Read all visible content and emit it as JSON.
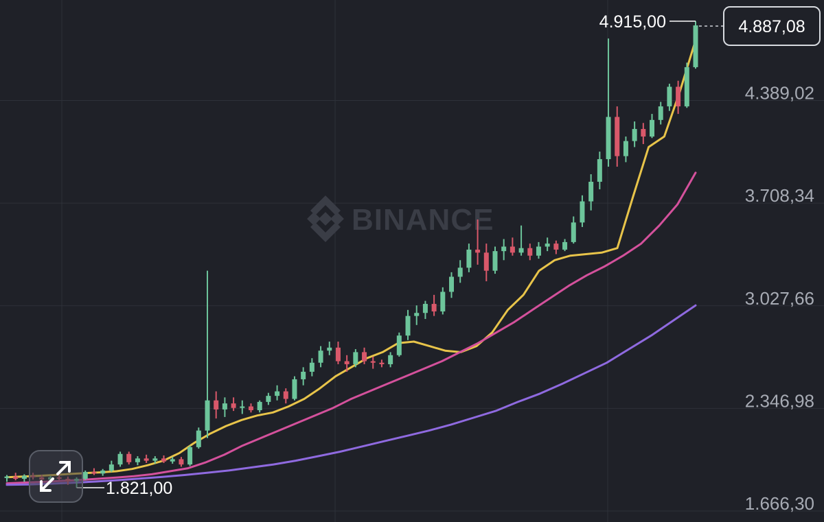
{
  "watermark": {
    "text": "BINANCE",
    "icon": "binance-logo-icon"
  },
  "colors": {
    "background": "#1f2128",
    "grid": "#2e3139",
    "up": "#6dc59b",
    "down": "#d9586a",
    "ma_short": "#e8c44a",
    "ma_mid": "#d4519c",
    "ma_long": "#8f6ae0",
    "axis_text": "#a7abb4"
  },
  "controls": {
    "expand_icon": "expand-arrows-icon"
  },
  "chart_data": {
    "type": "candlestick",
    "y_axis": {
      "position": "right",
      "ticks": [
        "4.389,02",
        "3.708,34",
        "3.027,66",
        "2.346,98",
        "1.666,30"
      ],
      "tick_values": [
        4389.02,
        3708.34,
        3027.66,
        2346.98,
        1666.3
      ],
      "range": [
        1666.3,
        5010
      ]
    },
    "grid": true,
    "current_price": {
      "label": "4.887,08",
      "value": 4887.08
    },
    "high_marker": {
      "label": "4.915,00",
      "value": 4915.0
    },
    "low_marker": {
      "label": "1.821,00",
      "value": 1821.0
    },
    "series": [
      {
        "type": "moving_average",
        "color": "#e8c44a",
        "values": [
          1890,
          1895,
          1899,
          1905,
          1912,
          1918,
          1923,
          1930,
          1945,
          1970,
          2000,
          2050,
          2120,
          2180,
          2230,
          2270,
          2300,
          2320,
          2360,
          2410,
          2480,
          2560,
          2620,
          2680,
          2720,
          2780,
          2790,
          2760,
          2730,
          2720,
          2760,
          2850,
          3000,
          3100,
          3260,
          3330,
          3360,
          3370,
          3380,
          3410,
          3750,
          4080,
          4150,
          4450,
          4790
        ]
      },
      {
        "type": "moving_average",
        "color": "#d4519c",
        "values": [
          1850,
          1855,
          1860,
          1866,
          1872,
          1880,
          1888,
          1897,
          1910,
          1930,
          1950,
          1990,
          2040,
          2100,
          2150,
          2200,
          2250,
          2300,
          2350,
          2410,
          2460,
          2510,
          2560,
          2610,
          2660,
          2720,
          2780,
          2850,
          2920,
          3000,
          3080,
          3160,
          3230,
          3290,
          3360,
          3440,
          3560,
          3700,
          3910
        ]
      },
      {
        "type": "moving_average",
        "color": "#8f6ae0",
        "values": [
          1840,
          1843,
          1848,
          1854,
          1862,
          1871,
          1882,
          1893,
          1905,
          1920,
          1935,
          1955,
          1975,
          2000,
          2030,
          2060,
          2095,
          2130,
          2165,
          2200,
          2240,
          2285,
          2330,
          2390,
          2445,
          2510,
          2580,
          2650,
          2740,
          2830,
          2930,
          3030
        ]
      }
    ],
    "candles": [
      {
        "o": 1885,
        "h": 1905,
        "l": 1860,
        "c": 1895
      },
      {
        "o": 1895,
        "h": 1920,
        "l": 1870,
        "c": 1880
      },
      {
        "o": 1880,
        "h": 1910,
        "l": 1860,
        "c": 1900
      },
      {
        "o": 1900,
        "h": 1920,
        "l": 1875,
        "c": 1890
      },
      {
        "o": 1890,
        "h": 1905,
        "l": 1860,
        "c": 1875
      },
      {
        "o": 1875,
        "h": 1900,
        "l": 1850,
        "c": 1890
      },
      {
        "o": 1890,
        "h": 1910,
        "l": 1870,
        "c": 1880
      },
      {
        "o": 1880,
        "h": 1895,
        "l": 1840,
        "c": 1865
      },
      {
        "o": 1865,
        "h": 1890,
        "l": 1821,
        "c": 1880
      },
      {
        "o": 1880,
        "h": 1935,
        "l": 1870,
        "c": 1925
      },
      {
        "o": 1925,
        "h": 1950,
        "l": 1905,
        "c": 1915
      },
      {
        "o": 1915,
        "h": 1945,
        "l": 1900,
        "c": 1935
      },
      {
        "o": 1935,
        "h": 2000,
        "l": 1925,
        "c": 1975
      },
      {
        "o": 1975,
        "h": 2060,
        "l": 1960,
        "c": 2045
      },
      {
        "o": 2045,
        "h": 2060,
        "l": 1975,
        "c": 1990
      },
      {
        "o": 1990,
        "h": 2030,
        "l": 1970,
        "c": 2015
      },
      {
        "o": 2015,
        "h": 2040,
        "l": 1985,
        "c": 2000
      },
      {
        "o": 2000,
        "h": 2030,
        "l": 1980,
        "c": 2015
      },
      {
        "o": 2015,
        "h": 2035,
        "l": 1985,
        "c": 1995
      },
      {
        "o": 1995,
        "h": 2025,
        "l": 1980,
        "c": 2010
      },
      {
        "o": 2010,
        "h": 2025,
        "l": 1960,
        "c": 1975
      },
      {
        "o": 1975,
        "h": 2100,
        "l": 1965,
        "c": 2090
      },
      {
        "o": 2090,
        "h": 2220,
        "l": 2080,
        "c": 2200
      },
      {
        "o": 2200,
        "h": 3260,
        "l": 2150,
        "c": 2400
      },
      {
        "o": 2400,
        "h": 2460,
        "l": 2280,
        "c": 2340
      },
      {
        "o": 2340,
        "h": 2420,
        "l": 2290,
        "c": 2380
      },
      {
        "o": 2380,
        "h": 2420,
        "l": 2330,
        "c": 2350
      },
      {
        "o": 2350,
        "h": 2400,
        "l": 2310,
        "c": 2360
      },
      {
        "o": 2360,
        "h": 2380,
        "l": 2320,
        "c": 2335
      },
      {
        "o": 2335,
        "h": 2400,
        "l": 2320,
        "c": 2390
      },
      {
        "o": 2390,
        "h": 2450,
        "l": 2370,
        "c": 2430
      },
      {
        "o": 2430,
        "h": 2500,
        "l": 2400,
        "c": 2460
      },
      {
        "o": 2460,
        "h": 2480,
        "l": 2380,
        "c": 2410
      },
      {
        "o": 2410,
        "h": 2560,
        "l": 2400,
        "c": 2540
      },
      {
        "o": 2540,
        "h": 2620,
        "l": 2500,
        "c": 2590
      },
      {
        "o": 2590,
        "h": 2680,
        "l": 2560,
        "c": 2650
      },
      {
        "o": 2650,
        "h": 2760,
        "l": 2620,
        "c": 2730
      },
      {
        "o": 2730,
        "h": 2790,
        "l": 2700,
        "c": 2750
      },
      {
        "o": 2750,
        "h": 2790,
        "l": 2640,
        "c": 2660
      },
      {
        "o": 2660,
        "h": 2700,
        "l": 2590,
        "c": 2640
      },
      {
        "o": 2640,
        "h": 2740,
        "l": 2620,
        "c": 2720
      },
      {
        "o": 2720,
        "h": 2750,
        "l": 2640,
        "c": 2660
      },
      {
        "o": 2660,
        "h": 2690,
        "l": 2610,
        "c": 2650
      },
      {
        "o": 2650,
        "h": 2670,
        "l": 2620,
        "c": 2640
      },
      {
        "o": 2640,
        "h": 2720,
        "l": 2620,
        "c": 2700
      },
      {
        "o": 2700,
        "h": 2850,
        "l": 2690,
        "c": 2830
      },
      {
        "o": 2830,
        "h": 3000,
        "l": 2800,
        "c": 2960
      },
      {
        "o": 2960,
        "h": 3030,
        "l": 2900,
        "c": 2980
      },
      {
        "o": 2980,
        "h": 3060,
        "l": 2940,
        "c": 3040
      },
      {
        "o": 3040,
        "h": 3100,
        "l": 2960,
        "c": 2990
      },
      {
        "o": 2990,
        "h": 3150,
        "l": 2970,
        "c": 3120
      },
      {
        "o": 3120,
        "h": 3250,
        "l": 3080,
        "c": 3220
      },
      {
        "o": 3220,
        "h": 3330,
        "l": 3180,
        "c": 3280
      },
      {
        "o": 3280,
        "h": 3440,
        "l": 3250,
        "c": 3400
      },
      {
        "o": 3400,
        "h": 3600,
        "l": 3300,
        "c": 3380
      },
      {
        "o": 3380,
        "h": 3440,
        "l": 3190,
        "c": 3260
      },
      {
        "o": 3260,
        "h": 3420,
        "l": 3240,
        "c": 3390
      },
      {
        "o": 3390,
        "h": 3470,
        "l": 3330,
        "c": 3420
      },
      {
        "o": 3420,
        "h": 3480,
        "l": 3360,
        "c": 3380
      },
      {
        "o": 3380,
        "h": 3560,
        "l": 3360,
        "c": 3410
      },
      {
        "o": 3410,
        "h": 3440,
        "l": 3330,
        "c": 3360
      },
      {
        "o": 3360,
        "h": 3450,
        "l": 3340,
        "c": 3420
      },
      {
        "o": 3420,
        "h": 3480,
        "l": 3390,
        "c": 3440
      },
      {
        "o": 3440,
        "h": 3460,
        "l": 3370,
        "c": 3400
      },
      {
        "o": 3400,
        "h": 3470,
        "l": 3390,
        "c": 3450
      },
      {
        "o": 3450,
        "h": 3620,
        "l": 3440,
        "c": 3580
      },
      {
        "o": 3580,
        "h": 3760,
        "l": 3550,
        "c": 3720
      },
      {
        "o": 3720,
        "h": 3900,
        "l": 3660,
        "c": 3850
      },
      {
        "o": 3850,
        "h": 4050,
        "l": 3800,
        "c": 4000
      },
      {
        "o": 4000,
        "h": 4800,
        "l": 3950,
        "c": 4280
      },
      {
        "o": 4280,
        "h": 4350,
        "l": 3950,
        "c": 4020
      },
      {
        "o": 4020,
        "h": 4150,
        "l": 3980,
        "c": 4120
      },
      {
        "o": 4120,
        "h": 4250,
        "l": 4080,
        "c": 4200
      },
      {
        "o": 4200,
        "h": 4240,
        "l": 4100,
        "c": 4150
      },
      {
        "o": 4150,
        "h": 4300,
        "l": 4140,
        "c": 4260
      },
      {
        "o": 4260,
        "h": 4380,
        "l": 4230,
        "c": 4350
      },
      {
        "o": 4350,
        "h": 4500,
        "l": 4320,
        "c": 4480
      },
      {
        "o": 4480,
        "h": 4520,
        "l": 4300,
        "c": 4350
      },
      {
        "o": 4350,
        "h": 4640,
        "l": 4340,
        "c": 4610
      },
      {
        "o": 4610,
        "h": 4915,
        "l": 4600,
        "c": 4887.08
      }
    ]
  }
}
